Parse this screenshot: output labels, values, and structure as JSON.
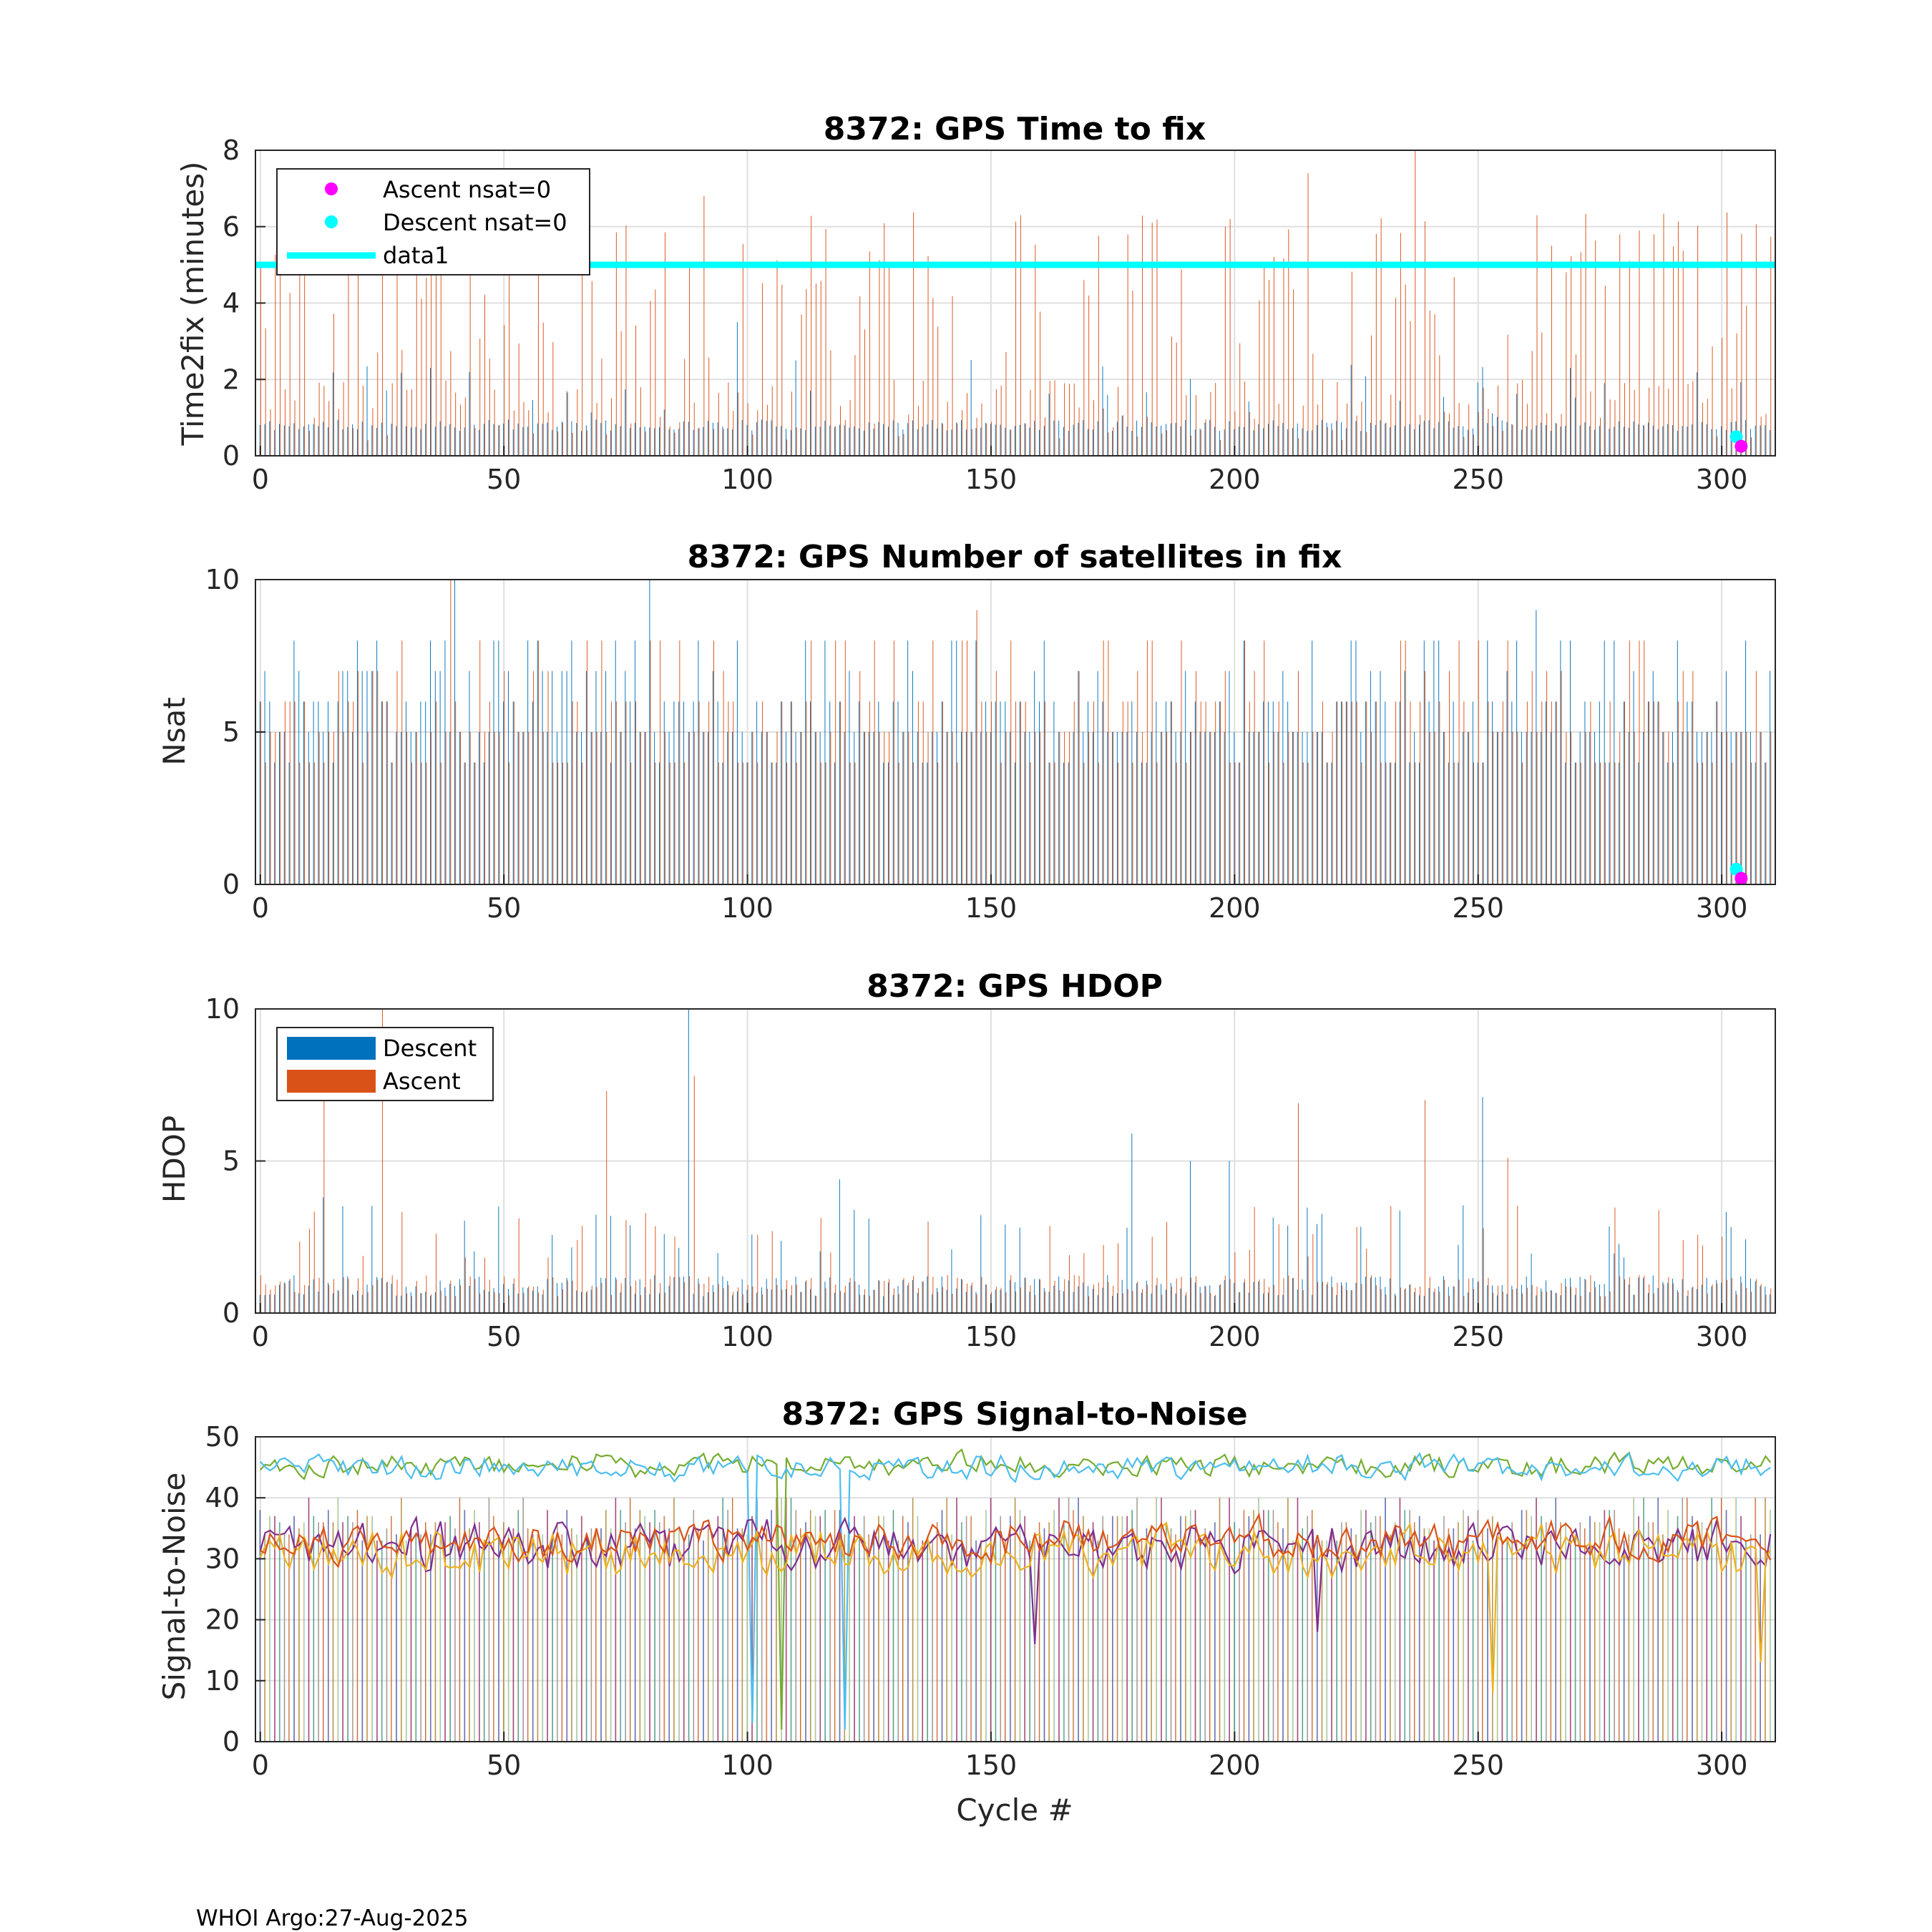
{
  "footer": "WHOI Argo:27-Aug-2025",
  "colors": {
    "descent": "#0072BD",
    "ascent": "#D95319",
    "cyan": "#00FFFF",
    "magenta": "#FF00FF",
    "snr_colors": [
      "#0072BD",
      "#D95319",
      "#EDB120",
      "#7E2F8E",
      "#77AC30",
      "#4DBEEE",
      "#A2142F"
    ]
  },
  "chart_data": [
    {
      "id": "time2fix",
      "type": "bar",
      "title": "8372: GPS Time to fix",
      "xlabel": "",
      "ylabel": "Time2fix (minutes)",
      "xlim": [
        -1,
        311
      ],
      "ylim": [
        0,
        8
      ],
      "xticks": [
        "0",
        "50",
        "100",
        "150",
        "200",
        "250",
        "300"
      ],
      "yticks": [
        "0",
        "2",
        "4",
        "6",
        "8"
      ],
      "grid": true,
      "legend": {
        "position": "top-left",
        "entries": [
          {
            "label": "Ascent nsat=0",
            "kind": "marker",
            "color": "#FF00FF"
          },
          {
            "label": "Descent nsat=0",
            "kind": "marker",
            "color": "#00FFFF"
          },
          {
            "label": "data1",
            "kind": "line",
            "color": "#00FFFF"
          }
        ]
      },
      "reference_line": {
        "name": "data1",
        "y": 5
      },
      "points": [
        {
          "name": "Descent nsat=0",
          "x": 303,
          "y": 0.5
        },
        {
          "name": "Ascent nsat=0",
          "x": 304,
          "y": 0.25
        }
      ],
      "series_gen": {
        "descent": {
          "seed": 11,
          "base": 0.8,
          "spread": 0.3,
          "spike_prob": 0.08,
          "spike_min": 1.0,
          "spike_max": 2.6
        },
        "ascent": {
          "seed": 23,
          "base": 1.2,
          "spread": 1.6,
          "spike_prob": 0.38,
          "spike_min": 2.5,
          "spike_max": 6.4
        }
      },
      "spikes": {
        "ascent": [
          [
            8,
            5.6
          ],
          [
            37,
            5.0
          ],
          [
            51,
            5.6
          ],
          [
            91,
            6.8
          ],
          [
            156,
            6.3
          ],
          [
            198,
            6.0
          ],
          [
            199,
            6.2
          ],
          [
            215,
            7.4
          ],
          [
            237,
            8.0
          ],
          [
            262,
            6.3
          ],
          [
            279,
            5.8
          ],
          [
            283,
            5.9
          ]
        ],
        "descent": [
          [
            35,
            2.3
          ],
          [
            98,
            3.5
          ],
          [
            110,
            2.5
          ],
          [
            269,
            2.3
          ]
        ]
      }
    },
    {
      "id": "nsat",
      "type": "bar",
      "title": "8372: GPS Number of satellites in fix",
      "xlabel": "",
      "ylabel": "Nsat",
      "xlim": [
        -1,
        311
      ],
      "ylim": [
        0,
        10
      ],
      "xticks": [
        "0",
        "50",
        "100",
        "150",
        "200",
        "250",
        "300"
      ],
      "yticks": [
        "0",
        "5",
        "10"
      ],
      "grid": true,
      "points": [
        {
          "name": "Descent nsat=0",
          "x": 303,
          "y": 0.5
        },
        {
          "name": "Ascent nsat=0",
          "x": 304,
          "y": 0.2
        }
      ],
      "series_gen": {
        "descent": {
          "seed": 31,
          "levels": [
            4,
            5,
            5,
            5,
            6,
            6,
            7,
            8
          ]
        },
        "ascent": {
          "seed": 47,
          "levels": [
            4,
            4,
            5,
            5,
            5,
            6,
            6,
            7,
            8
          ]
        }
      },
      "spikes": {
        "descent": [
          [
            40,
            10
          ],
          [
            80,
            10
          ],
          [
            262,
            9
          ]
        ],
        "ascent": [
          [
            39,
            10
          ],
          [
            147,
            9
          ]
        ]
      }
    },
    {
      "id": "hdop",
      "type": "bar",
      "title": "8372: GPS HDOP",
      "xlabel": "",
      "ylabel": "HDOP",
      "xlim": [
        -1,
        311
      ],
      "ylim": [
        0,
        10
      ],
      "xticks": [
        "0",
        "50",
        "100",
        "150",
        "200",
        "250",
        "300"
      ],
      "yticks": [
        "0",
        "5",
        "10"
      ],
      "grid": true,
      "legend": {
        "position": "top-left",
        "entries": [
          {
            "label": "Descent",
            "kind": "patch",
            "color": "#0072BD"
          },
          {
            "label": "Ascent",
            "kind": "patch",
            "color": "#D95319"
          }
        ]
      },
      "series_gen": {
        "descent": {
          "seed": 53,
          "base": 0.9,
          "spread": 0.7,
          "spike_prob": 0.14,
          "spike_min": 1.8,
          "spike_max": 3.6
        },
        "ascent": {
          "seed": 67,
          "base": 0.9,
          "spread": 0.7,
          "spike_prob": 0.14,
          "spike_min": 1.8,
          "spike_max": 3.6
        }
      },
      "spikes": {
        "descent": [
          [
            13,
            3.8
          ],
          [
            88,
            10.0
          ],
          [
            119,
            4.4
          ],
          [
            179,
            5.9
          ],
          [
            191,
            5.0
          ],
          [
            199,
            5.0
          ],
          [
            251,
            7.1
          ]
        ],
        "ascent": [
          [
            13,
            8.6
          ],
          [
            25,
            10.0
          ],
          [
            71,
            7.3
          ],
          [
            89,
            7.8
          ],
          [
            213,
            6.9
          ],
          [
            239,
            7.0
          ],
          [
            256,
            5.1
          ]
        ]
      }
    },
    {
      "id": "snr",
      "type": "line",
      "title": "8372: GPS Signal-to-Noise",
      "xlabel": "Cycle #",
      "ylabel": "Signal-to-Noise",
      "xlim": [
        -1,
        311
      ],
      "ylim": [
        0,
        50
      ],
      "xticks": [
        "0",
        "50",
        "100",
        "150",
        "200",
        "250",
        "300"
      ],
      "yticks": [
        "0",
        "10",
        "20",
        "30",
        "40",
        "50"
      ],
      "grid": true,
      "series_gen": {
        "bars": {
          "seed": 71,
          "levels": [
            33,
            34,
            35,
            36,
            37,
            38,
            40
          ]
        },
        "lines": [
          {
            "name": "high-1",
            "color": "#77AC30",
            "seed": 101,
            "mean": 45.5,
            "amp": 2.5
          },
          {
            "name": "high-2",
            "color": "#4DBEEE",
            "seed": 113,
            "mean": 45.0,
            "amp": 2.5
          },
          {
            "name": "mid-1",
            "color": "#7E2F8E",
            "seed": 127,
            "mean": 32.0,
            "amp": 5.0
          },
          {
            "name": "mid-2",
            "color": "#EDB120",
            "seed": 139,
            "mean": 31.0,
            "amp": 5.0
          },
          {
            "name": "mid-3",
            "color": "#D95319",
            "seed": 151,
            "mean": 33.0,
            "amp": 4.0
          }
        ]
      },
      "dips": [
        {
          "series": "high-2",
          "x": 101,
          "y": 3
        },
        {
          "series": "high-1",
          "x": 107,
          "y": 2
        },
        {
          "series": "high-2",
          "x": 120,
          "y": 2
        },
        {
          "series": "mid-1",
          "x": 159,
          "y": 16
        },
        {
          "series": "mid-1",
          "x": 217,
          "y": 18
        },
        {
          "series": "mid-2",
          "x": 253,
          "y": 8
        },
        {
          "series": "mid-2",
          "x": 308,
          "y": 13
        }
      ]
    }
  ]
}
